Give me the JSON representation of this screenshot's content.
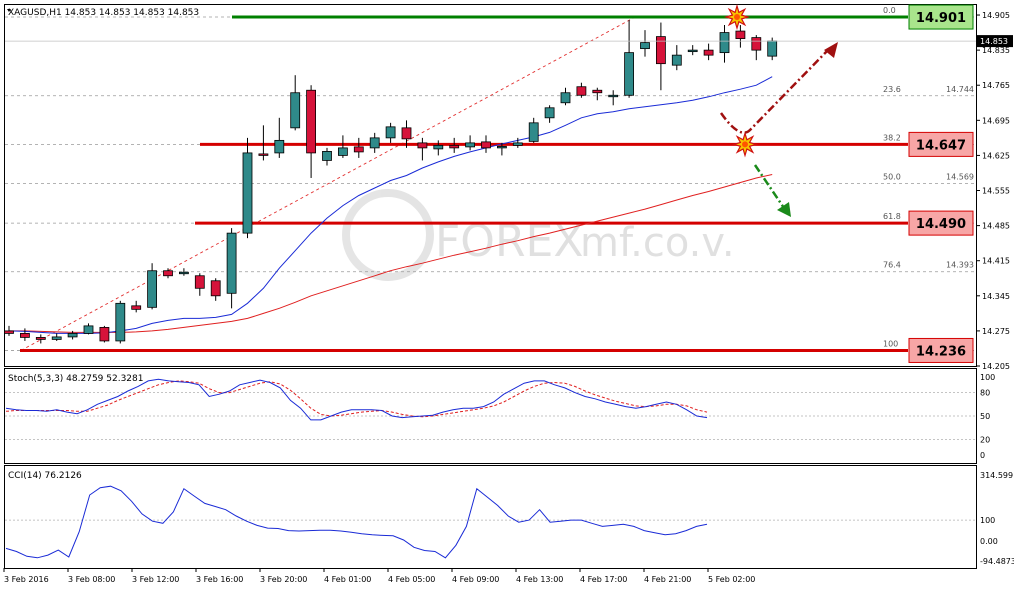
{
  "header": {
    "main": "XAGUSD,H1  14.853 14.853 14.853 14.853",
    "stoch": "Stoch(5,3,3) 48.2759 52.3281",
    "cci": "CCI(14) 76.2126"
  },
  "watermark": "FOREX",
  "watermark_suffix": "mf.co.v.",
  "chart_data": [
    {
      "type": "candlestick",
      "symbol": "XAGUSD",
      "timeframe": "H1",
      "ylim": [
        14.205,
        14.925
      ],
      "y_ticks": [
        "14.905",
        "14.835",
        "14.765",
        "14.695",
        "14.625",
        "14.555",
        "14.485",
        "14.415",
        "14.345",
        "14.275",
        "14.205"
      ],
      "current_price": "14.853",
      "x_tick_labels": [
        "3 Feb 2016",
        "3 Feb 08:00",
        "3 Feb 12:00",
        "3 Feb 16:00",
        "3 Feb 20:00",
        "4 Feb 01:00",
        "4 Feb 05:00",
        "4 Feb 09:00",
        "4 Feb 13:00",
        "4 Feb 17:00",
        "4 Feb 21:00",
        "5 Feb 02:00"
      ],
      "candles": [
        [
          14.275,
          14.27,
          14.285,
          14.265
        ],
        [
          14.27,
          14.262,
          14.28,
          14.255
        ],
        [
          14.262,
          14.258,
          14.268,
          14.25
        ],
        [
          14.258,
          14.263,
          14.27,
          14.255
        ],
        [
          14.263,
          14.27,
          14.275,
          14.258
        ],
        [
          14.27,
          14.285,
          14.29,
          14.268
        ],
        [
          14.282,
          14.255,
          14.285,
          14.252
        ],
        [
          14.255,
          14.33,
          14.335,
          14.25
        ],
        [
          14.325,
          14.318,
          14.335,
          14.312
        ],
        [
          14.322,
          14.395,
          14.41,
          14.318
        ],
        [
          14.395,
          14.385,
          14.4,
          14.38
        ],
        [
          14.39,
          14.392,
          14.4,
          14.385
        ],
        [
          14.385,
          14.36,
          14.39,
          14.345
        ],
        [
          14.375,
          14.345,
          14.38,
          14.335
        ],
        [
          14.35,
          14.47,
          14.48,
          14.32
        ],
        [
          14.47,
          14.63,
          14.66,
          14.46
        ],
        [
          14.628,
          14.625,
          14.685,
          14.615
        ],
        [
          14.63,
          14.655,
          14.7,
          14.62
        ],
        [
          14.68,
          14.75,
          14.785,
          14.675
        ],
        [
          14.755,
          14.63,
          14.765,
          14.58
        ],
        [
          14.615,
          14.633,
          14.64,
          14.605
        ],
        [
          14.625,
          14.64,
          14.665,
          14.62
        ],
        [
          14.642,
          14.632,
          14.66,
          14.62
        ],
        [
          14.64,
          14.66,
          14.67,
          14.63
        ],
        [
          14.66,
          14.682,
          14.69,
          14.65
        ],
        [
          14.68,
          14.658,
          14.695,
          14.64
        ],
        [
          14.65,
          14.64,
          14.66,
          14.615
        ],
        [
          14.638,
          14.645,
          14.655,
          14.625
        ],
        [
          14.645,
          14.64,
          14.66,
          14.63
        ],
        [
          14.642,
          14.65,
          14.665,
          14.635
        ],
        [
          14.652,
          14.64,
          14.665,
          14.63
        ],
        [
          14.64,
          14.643,
          14.65,
          14.625
        ],
        [
          14.645,
          14.65,
          14.66,
          14.64
        ],
        [
          14.653,
          14.69,
          14.7,
          14.65
        ],
        [
          14.7,
          14.72,
          14.725,
          14.69
        ],
        [
          14.73,
          14.75,
          14.76,
          14.725
        ],
        [
          14.762,
          14.745,
          14.77,
          14.74
        ],
        [
          14.755,
          14.75,
          14.76,
          14.735
        ],
        [
          14.745,
          14.745,
          14.755,
          14.725
        ],
        [
          14.745,
          14.83,
          14.895,
          14.74
        ],
        [
          14.838,
          14.85,
          14.875,
          14.822
        ],
        [
          14.862,
          14.808,
          14.89,
          14.755
        ],
        [
          14.805,
          14.825,
          14.845,
          14.795
        ],
        [
          14.832,
          14.835,
          14.845,
          14.825
        ],
        [
          14.835,
          14.825,
          14.848,
          14.815
        ],
        [
          14.83,
          14.87,
          14.885,
          14.81
        ],
        [
          14.873,
          14.858,
          14.885,
          14.84
        ],
        [
          14.86,
          14.835,
          14.865,
          14.815
        ],
        [
          14.823,
          14.853,
          14.86,
          14.815
        ]
      ],
      "ma_fast": [
        14.275,
        14.274,
        14.272,
        14.27,
        14.27,
        14.27,
        14.271,
        14.275,
        14.28,
        14.29,
        14.296,
        14.3,
        14.3,
        14.302,
        14.308,
        14.33,
        14.36,
        14.4,
        14.435,
        14.47,
        14.5,
        14.525,
        14.545,
        14.56,
        14.575,
        14.585,
        14.6,
        14.612,
        14.623,
        14.632,
        14.64,
        14.648,
        14.655,
        14.662,
        14.671,
        14.685,
        14.7,
        14.708,
        14.712,
        14.718,
        14.722,
        14.726,
        14.73,
        14.735,
        14.742,
        14.75,
        14.757,
        14.765,
        14.782
      ],
      "ma_slow": [
        14.275,
        14.275,
        14.274,
        14.273,
        14.272,
        14.272,
        14.272,
        14.272,
        14.273,
        14.275,
        14.278,
        14.282,
        14.286,
        14.29,
        14.294,
        14.3,
        14.31,
        14.32,
        14.332,
        14.345,
        14.355,
        14.365,
        14.375,
        14.385,
        14.395,
        14.403,
        14.41,
        14.418,
        14.426,
        14.433,
        14.44,
        14.448,
        14.455,
        14.463,
        14.47,
        14.478,
        14.486,
        14.494,
        14.502,
        14.51,
        14.518,
        14.527,
        14.536,
        14.545,
        14.553,
        14.562,
        14.571,
        14.58,
        14.587
      ],
      "levels": [
        {
          "label": "14.901",
          "value": 14.901,
          "color": "#008000",
          "fill": "#a9e58c"
        },
        {
          "label": "14.647",
          "value": 14.647,
          "color": "#d40000",
          "fill": "#f7a6a6"
        },
        {
          "label": "14.490",
          "value": 14.49,
          "color": "#d40000",
          "fill": "#f7a6a6"
        },
        {
          "label": "14.236",
          "value": 14.236,
          "color": "#d40000",
          "fill": "#f7a6a6"
        }
      ],
      "fibonacci": [
        {
          "ratio": "0.0",
          "value": 14.901
        },
        {
          "ratio": "23.6",
          "value": 14.744,
          "price": "14.744"
        },
        {
          "ratio": "38.2",
          "value": 14.647
        },
        {
          "ratio": "50.0",
          "value": 14.569,
          "price": "14.569"
        },
        {
          "ratio": "61.8",
          "value": 14.49
        },
        {
          "ratio": "76.4",
          "value": 14.393,
          "price": "14.393"
        },
        {
          "ratio": "100",
          "value": 14.236
        }
      ]
    },
    {
      "type": "line",
      "name": "Stoch(5,3,3)",
      "ylim": [
        0,
        100
      ],
      "y_ticks": [
        "100",
        "80",
        "50",
        "20",
        "0"
      ],
      "main": [
        60,
        58,
        57,
        57,
        56,
        58,
        55,
        53,
        58,
        65,
        70,
        75,
        82,
        88,
        95,
        97,
        95,
        94,
        93,
        90,
        75,
        78,
        82,
        90,
        93,
        96,
        93,
        86,
        70,
        60,
        45,
        45,
        50,
        55,
        58,
        58,
        58,
        57,
        50,
        48,
        49,
        50,
        51,
        55,
        58,
        60,
        60,
        62,
        68,
        78,
        85,
        92,
        95,
        95,
        90,
        86,
        80,
        75,
        72,
        68,
        65,
        62,
        60,
        62,
        65,
        68,
        65,
        58,
        50,
        48
      ],
      "signal": [
        56,
        57,
        57,
        57,
        57,
        57,
        57,
        56,
        56,
        60,
        64,
        70,
        75,
        80,
        85,
        90,
        93,
        95,
        94,
        92,
        85,
        80,
        80,
        84,
        88,
        92,
        94,
        91,
        83,
        72,
        60,
        52,
        50,
        51,
        53,
        55,
        56,
        57,
        55,
        52,
        50,
        49,
        50,
        52,
        54,
        56,
        58,
        60,
        63,
        68,
        75,
        82,
        88,
        92,
        93,
        92,
        88,
        82,
        77,
        73,
        69,
        66,
        63,
        62,
        63,
        65,
        65,
        63,
        58,
        55
      ]
    },
    {
      "type": "line",
      "name": "CCI(14)",
      "ylim": [
        -100,
        330
      ],
      "y_ticks": [
        "314.599",
        "100",
        "0.00",
        "-94.4873"
      ],
      "values": [
        -35,
        -50,
        -73,
        -80,
        -67,
        -43,
        -76,
        45,
        220,
        255,
        262,
        240,
        190,
        130,
        95,
        85,
        140,
        250,
        215,
        180,
        165,
        150,
        120,
        95,
        75,
        62,
        60,
        50,
        48,
        50,
        52,
        52,
        48,
        42,
        35,
        30,
        27,
        25,
        5,
        -30,
        -45,
        -50,
        -80,
        -20,
        70,
        250,
        210,
        170,
        120,
        90,
        100,
        150,
        90,
        95,
        100,
        100,
        85,
        70,
        75,
        80,
        70,
        50,
        40,
        30,
        35,
        50,
        70,
        80
      ]
    }
  ]
}
